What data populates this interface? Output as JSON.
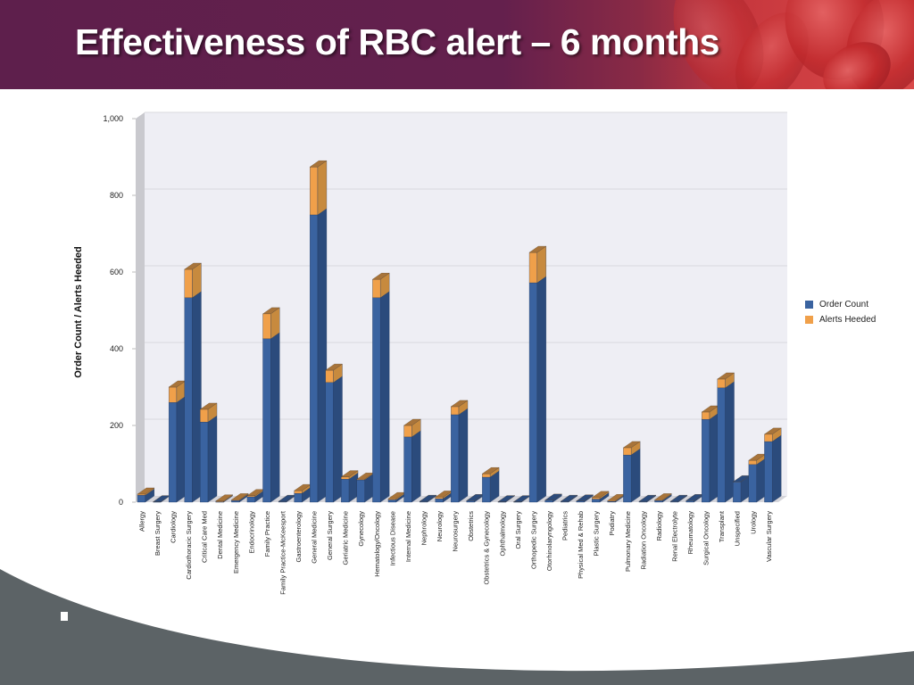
{
  "slide": {
    "title": "Effectiveness of RBC alert – 6 months"
  },
  "colors": {
    "header_purple": "#5e1f4c",
    "order_count": "#3a63a0",
    "order_count_side": "#2b4b7c",
    "alerts_heeded": "#f0a04a",
    "alerts_heeded_side": "#c78a3e",
    "plot_bg": "#eeeef4",
    "footer_gray": "#5c6366"
  },
  "legend": {
    "items": [
      {
        "label": "Order Count",
        "color": "#3a63a0"
      },
      {
        "label": "Alerts Heeded",
        "color": "#f0a04a"
      }
    ]
  },
  "chart_data": {
    "type": "bar",
    "stacked": true,
    "three_d": true,
    "title": "",
    "xlabel": "",
    "ylabel": "Order Count / Alerts Heeded",
    "ylim": [
      0,
      1000
    ],
    "yticks": [
      "0",
      "200",
      "400",
      "600",
      "800",
      "1,000"
    ],
    "grid": true,
    "legend_position": "right",
    "categories": [
      "Allergy",
      "Breast Surgery",
      "Cardiology",
      "Cardiothoracic Surgery",
      "Critical Care Med",
      "Dental Medicine",
      "Emergency Medicine",
      "Endocrinology",
      "Family Practice",
      "Family Practice-McKeesport",
      "Gastroenterology",
      "General Medicine",
      "General Surgery",
      "Geriatric Medicine",
      "Gynecology",
      "Hematology/Oncology",
      "Infectious Disease",
      "Internal Medicine",
      "Nephrology",
      "Neurology",
      "Neurosurgery",
      "Obstetrics",
      "Obstetrics & Gynecology",
      "Ophthalmology",
      "Oral Surgery",
      "Orthopedic Surgery",
      "Otorhinolaryngology",
      "Pediatrics",
      "Physical Med & Rehab",
      "Plastic Surgery",
      "Podiatry",
      "Pulmonary Medicine",
      "Radiation Oncology",
      "Radiology",
      "Renal Electrolyte",
      "Rheumatology",
      "Surgical Oncology",
      "Transplant",
      "Unspecified",
      "Urology",
      "Vascular Surgery"
    ],
    "series": [
      {
        "name": "Order Count",
        "values": [
          18,
          1,
          260,
          533,
          209,
          1,
          4,
          14,
          426,
          2,
          23,
          749,
          312,
          60,
          58,
          533,
          6,
          170,
          2,
          9,
          228,
          4,
          65,
          1,
          1,
          572,
          5,
          2,
          3,
          8,
          2,
          123,
          2,
          4,
          2,
          4,
          216,
          298,
          53,
          98,
          158
        ]
      },
      {
        "name": "Alerts Heeded",
        "values": [
          3,
          0,
          40,
          74,
          33,
          2,
          2,
          3,
          65,
          0,
          7,
          125,
          32,
          6,
          2,
          48,
          3,
          30,
          1,
          4,
          21,
          0,
          9,
          0,
          0,
          79,
          0,
          0,
          0,
          4,
          2,
          19,
          0,
          2,
          0,
          0,
          19,
          23,
          1,
          11,
          19
        ]
      }
    ]
  }
}
